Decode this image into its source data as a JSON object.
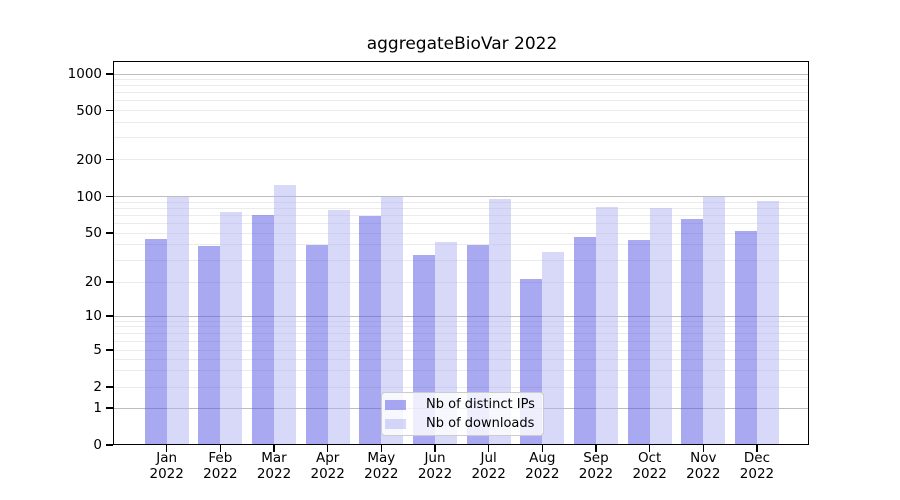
{
  "chart_data": {
    "type": "bar",
    "title": "aggregateBioVar 2022",
    "categories": [
      "Jan",
      "Feb",
      "Mar",
      "Apr",
      "May",
      "Jun",
      "Jul",
      "Aug",
      "Sep",
      "Oct",
      "Nov",
      "Dec"
    ],
    "year_label": "2022",
    "series": [
      {
        "name": "Nb of distinct IPs",
        "color": "#5353e6",
        "alpha": 0.5,
        "values": [
          45,
          39,
          70,
          40,
          69,
          33,
          40,
          21,
          46,
          44,
          65,
          52
        ]
      },
      {
        "name": "Nb of downloads",
        "color": "#b1b1f1",
        "alpha": 0.5,
        "values": [
          100,
          75,
          125,
          78,
          100,
          42,
          95,
          35,
          82,
          80,
          100,
          91
        ]
      }
    ],
    "ylabel": "",
    "xlabel": "",
    "yticks": [
      0,
      1,
      2,
      5,
      10,
      20,
      50,
      100,
      200,
      500,
      1000
    ],
    "ylim": [
      0,
      1300
    ],
    "yscale": "symlog",
    "grid": "horizontal",
    "grid_major_color": "#bdbdbd",
    "grid_minor_color": "#ebebeb",
    "legend_position": "inside-bottom-center",
    "background_color": "#ffffff"
  }
}
